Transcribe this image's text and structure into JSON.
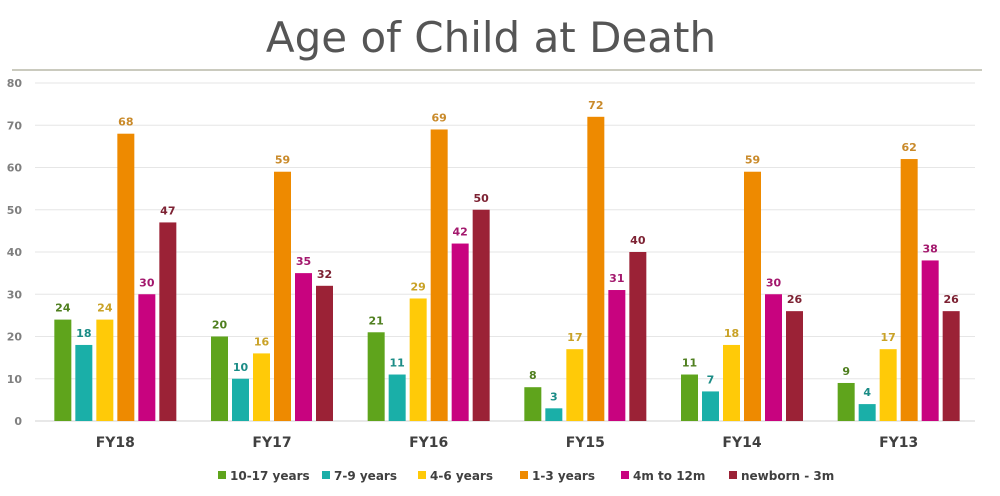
{
  "chart_data": {
    "type": "bar",
    "title": "Age of Child at Death",
    "xlabel": "",
    "ylabel": "",
    "ylim": [
      0,
      80
    ],
    "yticks": [
      0,
      10,
      20,
      30,
      40,
      50,
      60,
      70,
      80
    ],
    "grid": true,
    "legend_position": "bottom",
    "categories": [
      "FY18",
      "FY17",
      "FY16",
      "FY15",
      "FY14",
      "FY13"
    ],
    "series": [
      {
        "name": "10-17 years",
        "color": "#5fa41c",
        "label_color": "#4f7f1f",
        "values": [
          24,
          20,
          21,
          8,
          11,
          9
        ]
      },
      {
        "name": "7-9 years",
        "color": "#1aafa8",
        "label_color": "#1b8c86",
        "values": [
          18,
          10,
          11,
          3,
          7,
          4
        ]
      },
      {
        "name": "4-6 years",
        "color": "#ffca08",
        "label_color": "#c9a227",
        "values": [
          24,
          16,
          29,
          17,
          18,
          17
        ]
      },
      {
        "name": "1-3 years",
        "color": "#ee8a00",
        "label_color": "#c98a2a",
        "values": [
          68,
          59,
          69,
          72,
          59,
          62
        ]
      },
      {
        "name": "4m to 12m",
        "color": "#c8037f",
        "label_color": "#a3186d",
        "values": [
          30,
          35,
          42,
          31,
          30,
          38
        ]
      },
      {
        "name": "newborn - 3m",
        "color": "#9b2236",
        "label_color": "#7d2233",
        "values": [
          47,
          32,
          50,
          40,
          26,
          26
        ]
      }
    ]
  }
}
